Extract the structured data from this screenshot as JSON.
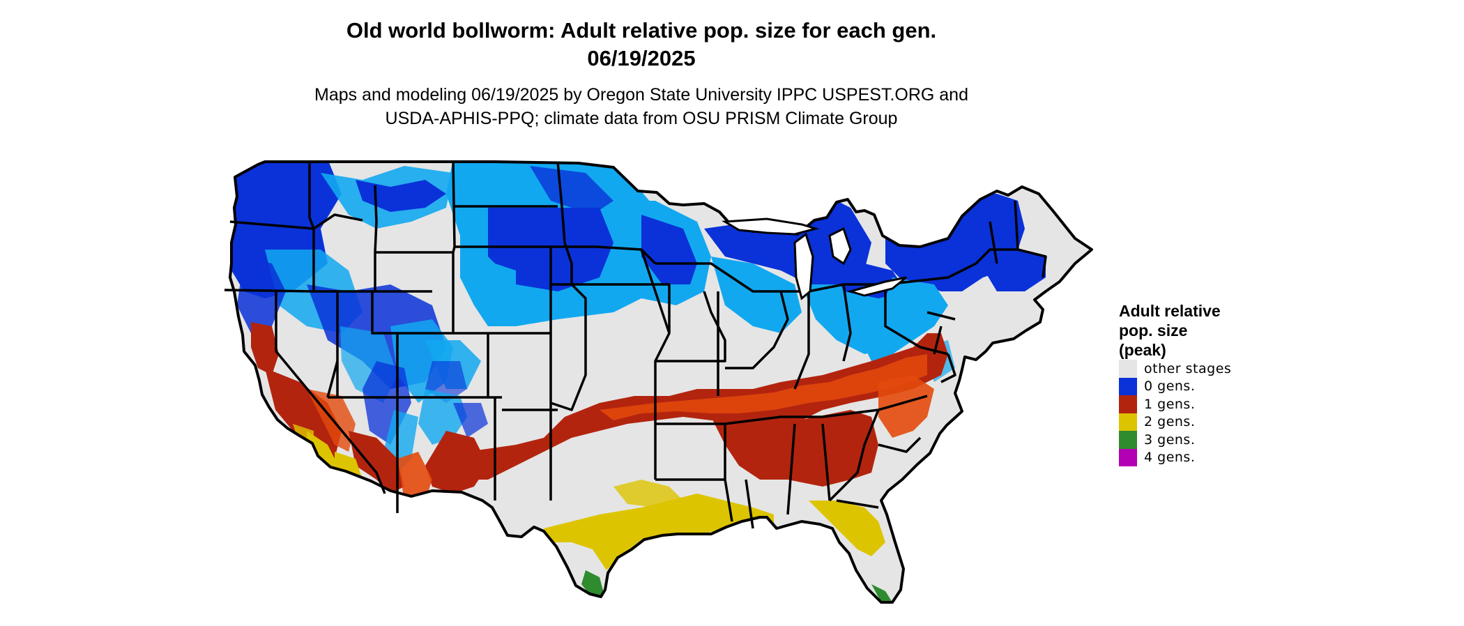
{
  "title": {
    "line1": "Old world bollworm: Adult relative pop. size for each gen.",
    "line2": "06/19/2025"
  },
  "subtitle": {
    "line1": "Maps and modeling 06/19/2025 by Oregon State University IPPC USPEST.ORG and",
    "line2": "USDA-APHIS-PPQ; climate data from OSU PRISM Climate Group"
  },
  "legend": {
    "title_lines": [
      "Adult relative",
      "pop. size",
      "(peak)"
    ],
    "entries": [
      {
        "label": "other stages",
        "color": "#e5e5e5"
      },
      {
        "label": "0 gens.",
        "color": "#0a32d8"
      },
      {
        "label": "1 gens.",
        "color": "#b3240f"
      },
      {
        "label": "2 gens.",
        "color": "#ddc400"
      },
      {
        "label": "3 gens.",
        "color": "#2e8b2e"
      },
      {
        "label": "4 gens.",
        "color": "#b400b4"
      }
    ]
  },
  "map_colors": {
    "background": "#e5e5e5",
    "blue_dark": "#0a32d8",
    "blue_light": "#12a8f0",
    "red": "#b3240f",
    "red_orange": "#e34a0c",
    "yellow": "#ddc400",
    "green": "#2e8b2e",
    "border": "#000000"
  }
}
